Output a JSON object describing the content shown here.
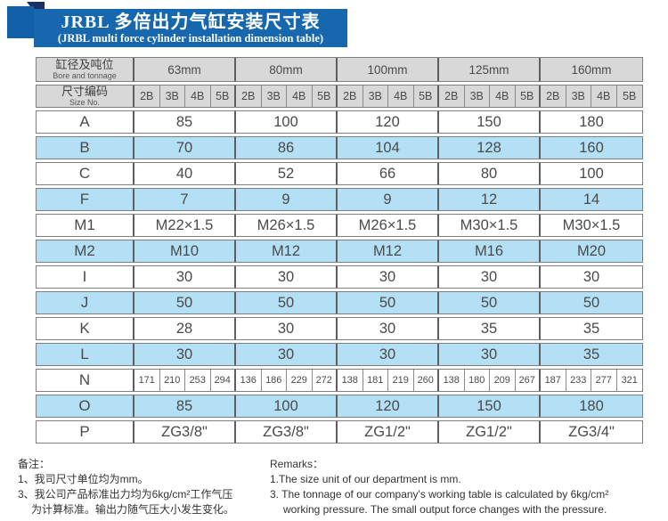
{
  "banner": {
    "title_cn": "JRBL 多倍出力气缸安装尺寸表",
    "title_en": "(JRBL multi force cylinder installation dimension table)"
  },
  "colors": {
    "banner_blue": "#1767ae",
    "fold_navy": "#1b2d6b",
    "header_gray": "#d8d8d8",
    "row_blue": "#b4e0f6",
    "border_gray": "#7f7f7f"
  },
  "table": {
    "header": {
      "bore_cn": "缸径及吨位",
      "bore_en": "Bore and tonnage",
      "size_cn": "尺寸编码",
      "size_en": "Size No.",
      "groups": [
        "63mm",
        "80mm",
        "100mm",
        "125mm",
        "160mm"
      ],
      "sizes": [
        "2B",
        "3B",
        "4B",
        "5B"
      ]
    },
    "rows": [
      {
        "label": "A",
        "span": "group",
        "values": [
          "85",
          "100",
          "120",
          "150",
          "180"
        ]
      },
      {
        "label": "B",
        "span": "group",
        "values": [
          "70",
          "86",
          "104",
          "128",
          "160"
        ]
      },
      {
        "label": "C",
        "span": "group",
        "values": [
          "40",
          "52",
          "66",
          "80",
          "100"
        ]
      },
      {
        "label": "F",
        "span": "group",
        "values": [
          "7",
          "9",
          "9",
          "12",
          "14"
        ]
      },
      {
        "label": "M1",
        "span": "group",
        "values": [
          "M22×1.5",
          "M26×1.5",
          "M26×1.5",
          "M30×1.5",
          "M30×1.5"
        ]
      },
      {
        "label": "M2",
        "span": "group",
        "values": [
          "M10",
          "M12",
          "M12",
          "M16",
          "M20"
        ]
      },
      {
        "label": "I",
        "span": "group",
        "values": [
          "30",
          "30",
          "30",
          "30",
          "30"
        ]
      },
      {
        "label": "J",
        "span": "group",
        "values": [
          "50",
          "50",
          "50",
          "50",
          "50"
        ]
      },
      {
        "label": "K",
        "span": "group",
        "values": [
          "28",
          "30",
          "30",
          "35",
          "35"
        ]
      },
      {
        "label": "L",
        "span": "group",
        "values": [
          "30",
          "30",
          "30",
          "30",
          "35"
        ]
      },
      {
        "label": "N",
        "span": "size",
        "values": [
          "171",
          "210",
          "253",
          "294",
          "136",
          "186",
          "229",
          "272",
          "138",
          "181",
          "219",
          "260",
          "138",
          "180",
          "209",
          "267",
          "187",
          "233",
          "277",
          "321"
        ]
      },
      {
        "label": "O",
        "span": "group",
        "values": [
          "85",
          "100",
          "120",
          "150",
          "180"
        ]
      },
      {
        "label": "P",
        "span": "group",
        "values": [
          "ZG3/8\"",
          "ZG3/8\"",
          "ZG1/2\"",
          "ZG1/2\"",
          "ZG3/4\""
        ]
      }
    ]
  },
  "remarks_cn": {
    "title": "备注：",
    "lines": [
      {
        "text": "1、我司尺寸单位均为mm。",
        "indent": false
      },
      {
        "text": "3、我公司产品标准出力均为6kg/cm²工作气压",
        "indent": false
      },
      {
        "text": "为计算标准。输出力随气压大小发生变化。",
        "indent": true
      }
    ]
  },
  "remarks_en": {
    "title": "Remarks：",
    "lines": [
      {
        "text": "1.The size unit of our department is mm.",
        "indent": false
      },
      {
        "text": "3. The tonnage of our company's working table is calculated by 6kg/cm²",
        "indent": false
      },
      {
        "text": "working pressure. The small output force changes with the pressure.",
        "indent": true
      }
    ]
  }
}
